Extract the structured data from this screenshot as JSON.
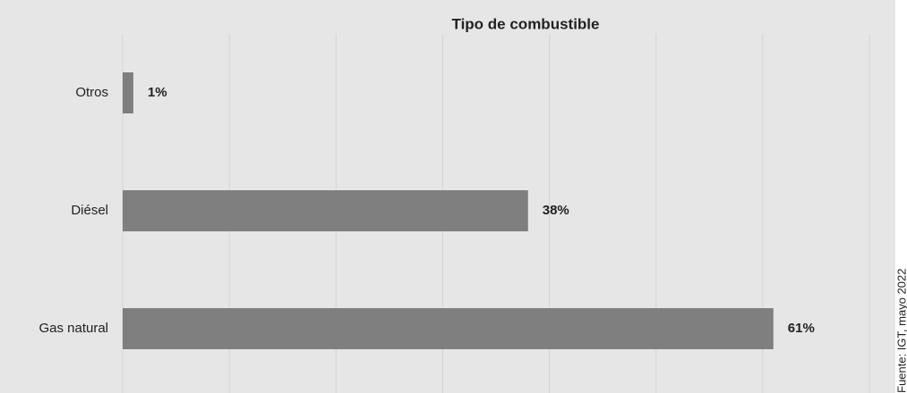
{
  "chart_data": {
    "type": "barh",
    "title": "Tipo de combustible",
    "categories": [
      "Otros",
      "Diésel",
      "Gas natural"
    ],
    "values": [
      1,
      38,
      61
    ],
    "value_labels": [
      "1%",
      "38%",
      "61%"
    ],
    "color": "#7f7f7f",
    "xlim": [
      0,
      70
    ],
    "xticks": [
      0,
      10,
      20,
      30,
      40,
      50,
      60,
      70
    ],
    "grid": true,
    "source": "Fuente: IGT, mayo 2022"
  }
}
